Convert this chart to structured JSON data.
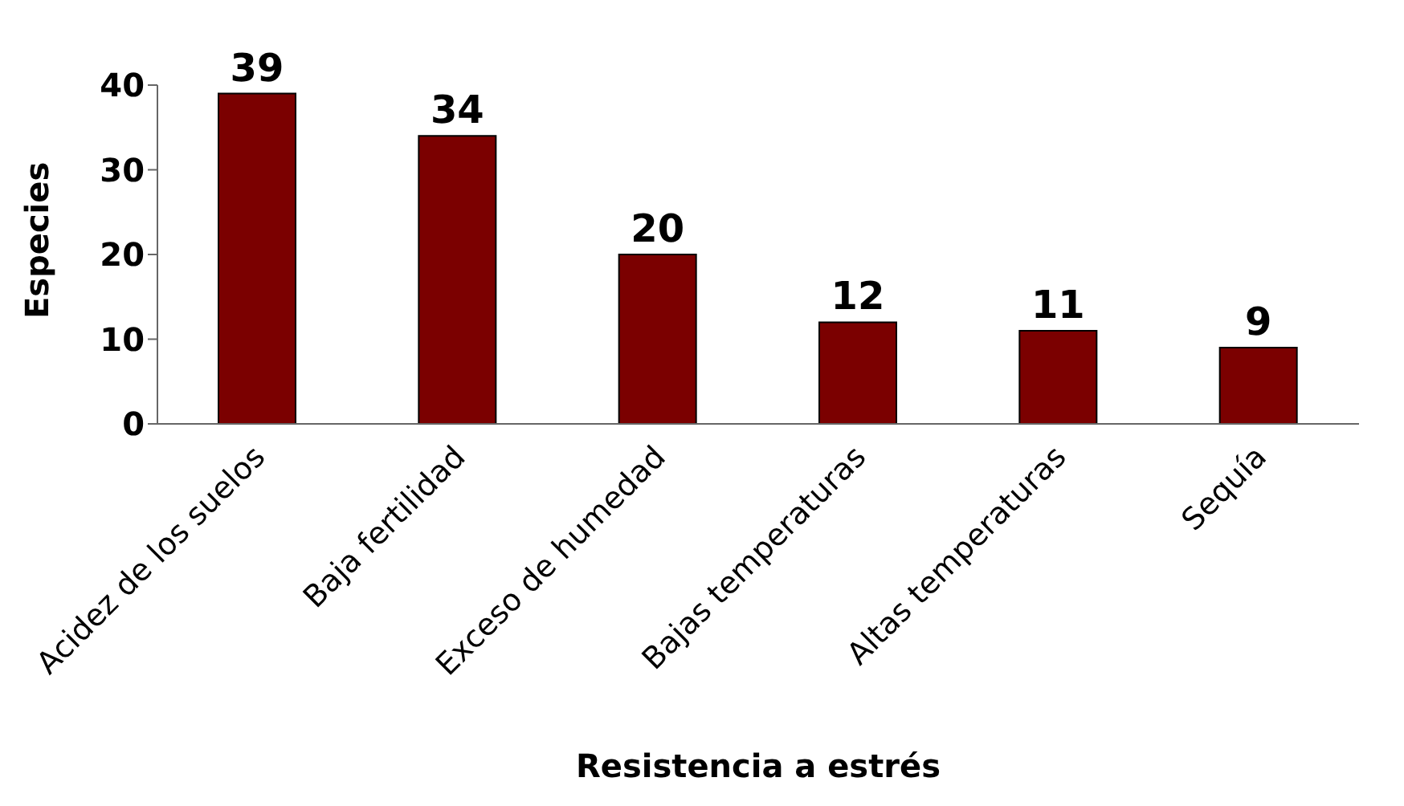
{
  "chart_data": {
    "type": "bar",
    "xlabel": "Resistencia a estrés",
    "ylabel": "Especies",
    "categories": [
      "Acidez de los suelos",
      "Baja fertilidad",
      "Exceso de humedad",
      "Bajas temperaturas",
      "Altas temperaturas",
      "Sequía"
    ],
    "values": [
      39,
      34,
      20,
      12,
      11,
      9
    ],
    "color": "#7b0000",
    "ylim": [
      0,
      40
    ],
    "yticks": [
      0,
      10,
      20,
      30,
      40
    ],
    "grid": false,
    "data_labels": true
  }
}
